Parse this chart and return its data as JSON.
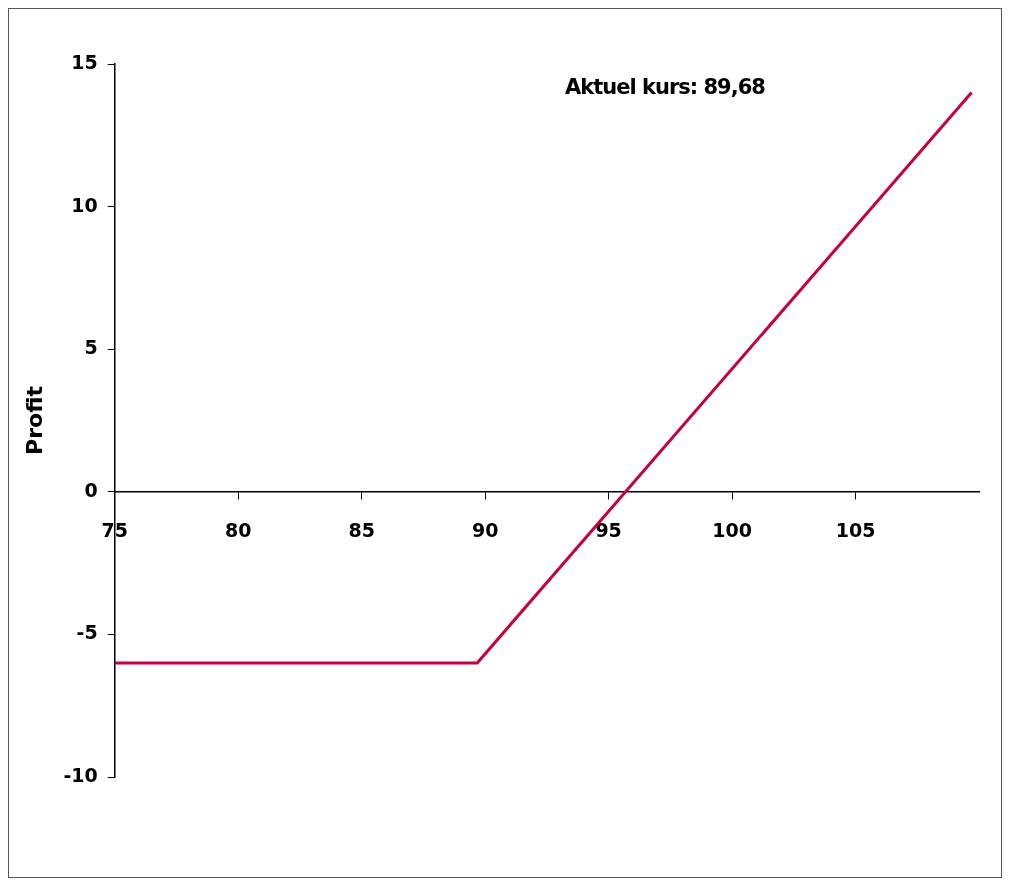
{
  "chart_data": {
    "type": "line",
    "ylabel": "Profit",
    "annotations": [
      "Aktuel kurs: 89,68"
    ],
    "series": [
      {
        "color": "#c8003c",
        "x": [
          75,
          89.68,
          109.7
        ],
        "values": [
          -6,
          -6,
          14
        ]
      }
    ],
    "xlim": [
      75,
      110
    ],
    "xticks": [
      75,
      80,
      85,
      90,
      95,
      100,
      105
    ],
    "ylim": [
      -10,
      15
    ],
    "yticks": [
      -10,
      -5,
      0,
      5,
      10,
      15
    ],
    "grid": false,
    "legend": false,
    "marker": "none",
    "line_style": "solid"
  }
}
